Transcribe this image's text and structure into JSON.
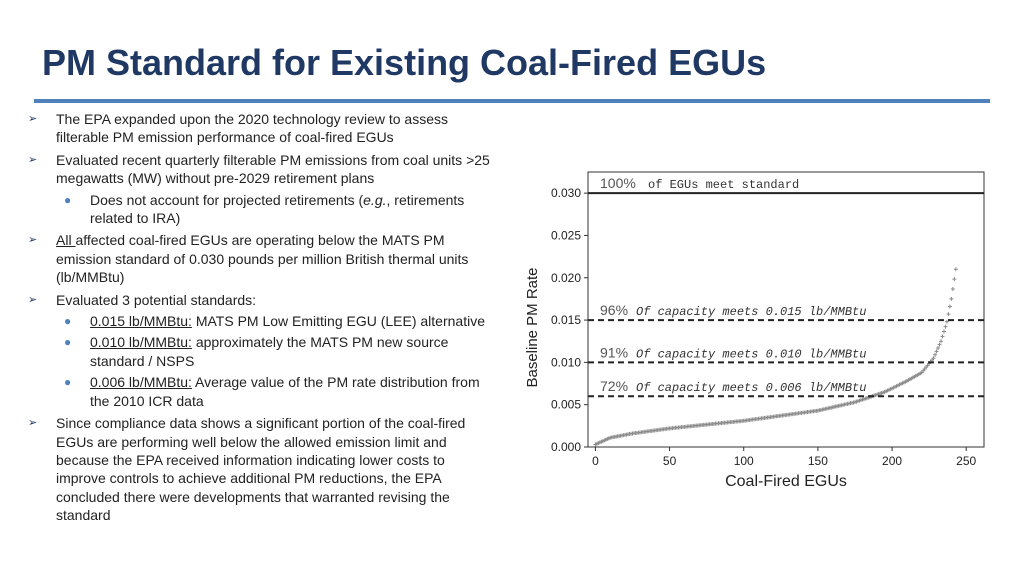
{
  "slide": {
    "title": "PM Standard for Existing Coal-Fired EGUs"
  },
  "bullets": {
    "b1": "The EPA expanded upon the 2020 technology review to assess filterable PM emission performance of coal-fired EGUs",
    "b2": "Evaluated recent quarterly filterable PM emissions from coal units >25 megawatts (MW) without pre-2029 retirement plans",
    "b2_sub_pre": "Does not account for projected retirements (",
    "b2_sub_italic": "e.g.",
    "b2_sub_post": ", retirements related to IRA)",
    "b3_u": "All ",
    "b3_rest": "affected coal-fired EGUs are operating below the MATS PM emission standard of 0.030 pounds per million British thermal units (lb/MMBtu)",
    "b4": "Evaluated 3 potential standards:",
    "opt1_u": "0.015 lb/MMBtu:",
    "opt1_rest": " MATS PM Low Emitting EGU (LEE) alternative",
    "opt2_u": "0.010 lb/MMBtu:",
    "opt2_rest": " approximately the MATS PM new source standard / NSPS",
    "opt3_u": "0.006 lb/MMBtu:",
    "opt3_rest": " Average value of the PM rate distribution from the 2010 ICR data",
    "b5": "Since compliance data shows a significant portion of the coal-fired EGUs are performing well below the allowed emission limit and because the EPA received information indicating lower costs to improve controls to achieve additional PM reductions, the EPA concluded there were developments that warranted revising the standard",
    "marker_l1": "➢",
    "marker_l2": "●"
  },
  "chart_data": {
    "type": "scatter",
    "xlabel": "Coal-Fired EGUs",
    "ylabel": "Baseline PM Rate",
    "xlim": [
      -5,
      262
    ],
    "ylim": [
      0,
      0.0325
    ],
    "xticks": [
      0,
      50,
      100,
      150,
      200,
      250
    ],
    "yticks": [
      0.0,
      0.005,
      0.01,
      0.015,
      0.02,
      0.025,
      0.03
    ],
    "grid": false,
    "n_points": 244,
    "curve_knots": [
      [
        0,
        0.0003
      ],
      [
        5,
        0.0007
      ],
      [
        10,
        0.0011
      ],
      [
        25,
        0.0016
      ],
      [
        50,
        0.0022
      ],
      [
        100,
        0.0031
      ],
      [
        150,
        0.0043
      ],
      [
        175,
        0.0053
      ],
      [
        195,
        0.0065
      ],
      [
        210,
        0.0078
      ],
      [
        220,
        0.0088
      ],
      [
        228,
        0.0105
      ],
      [
        233,
        0.0125
      ],
      [
        237,
        0.0148
      ],
      [
        240,
        0.0175
      ],
      [
        243,
        0.021
      ]
    ],
    "reference_lines": [
      {
        "y": 0.03,
        "style": "solid",
        "pct": "100%",
        "label": "of EGUs meet standard",
        "italic": false
      },
      {
        "y": 0.015,
        "style": "dashed",
        "pct": "96%",
        "label": "Of capacity meets 0.015 lb/MMBtu",
        "italic": true
      },
      {
        "y": 0.01,
        "style": "dashed",
        "pct": "91%",
        "label": "Of capacity meets 0.010 lb/MMBtu",
        "italic": true
      },
      {
        "y": 0.006,
        "style": "dashed",
        "pct": "72%",
        "label": "Of capacity meets 0.006 lb/MMBtu",
        "italic": true
      }
    ],
    "colors": {
      "points": "#8a8a8a",
      "lines": "#222222",
      "pct": "#555555"
    }
  },
  "colors": {
    "title": "#1f3864",
    "rule": "#4f81bd"
  }
}
